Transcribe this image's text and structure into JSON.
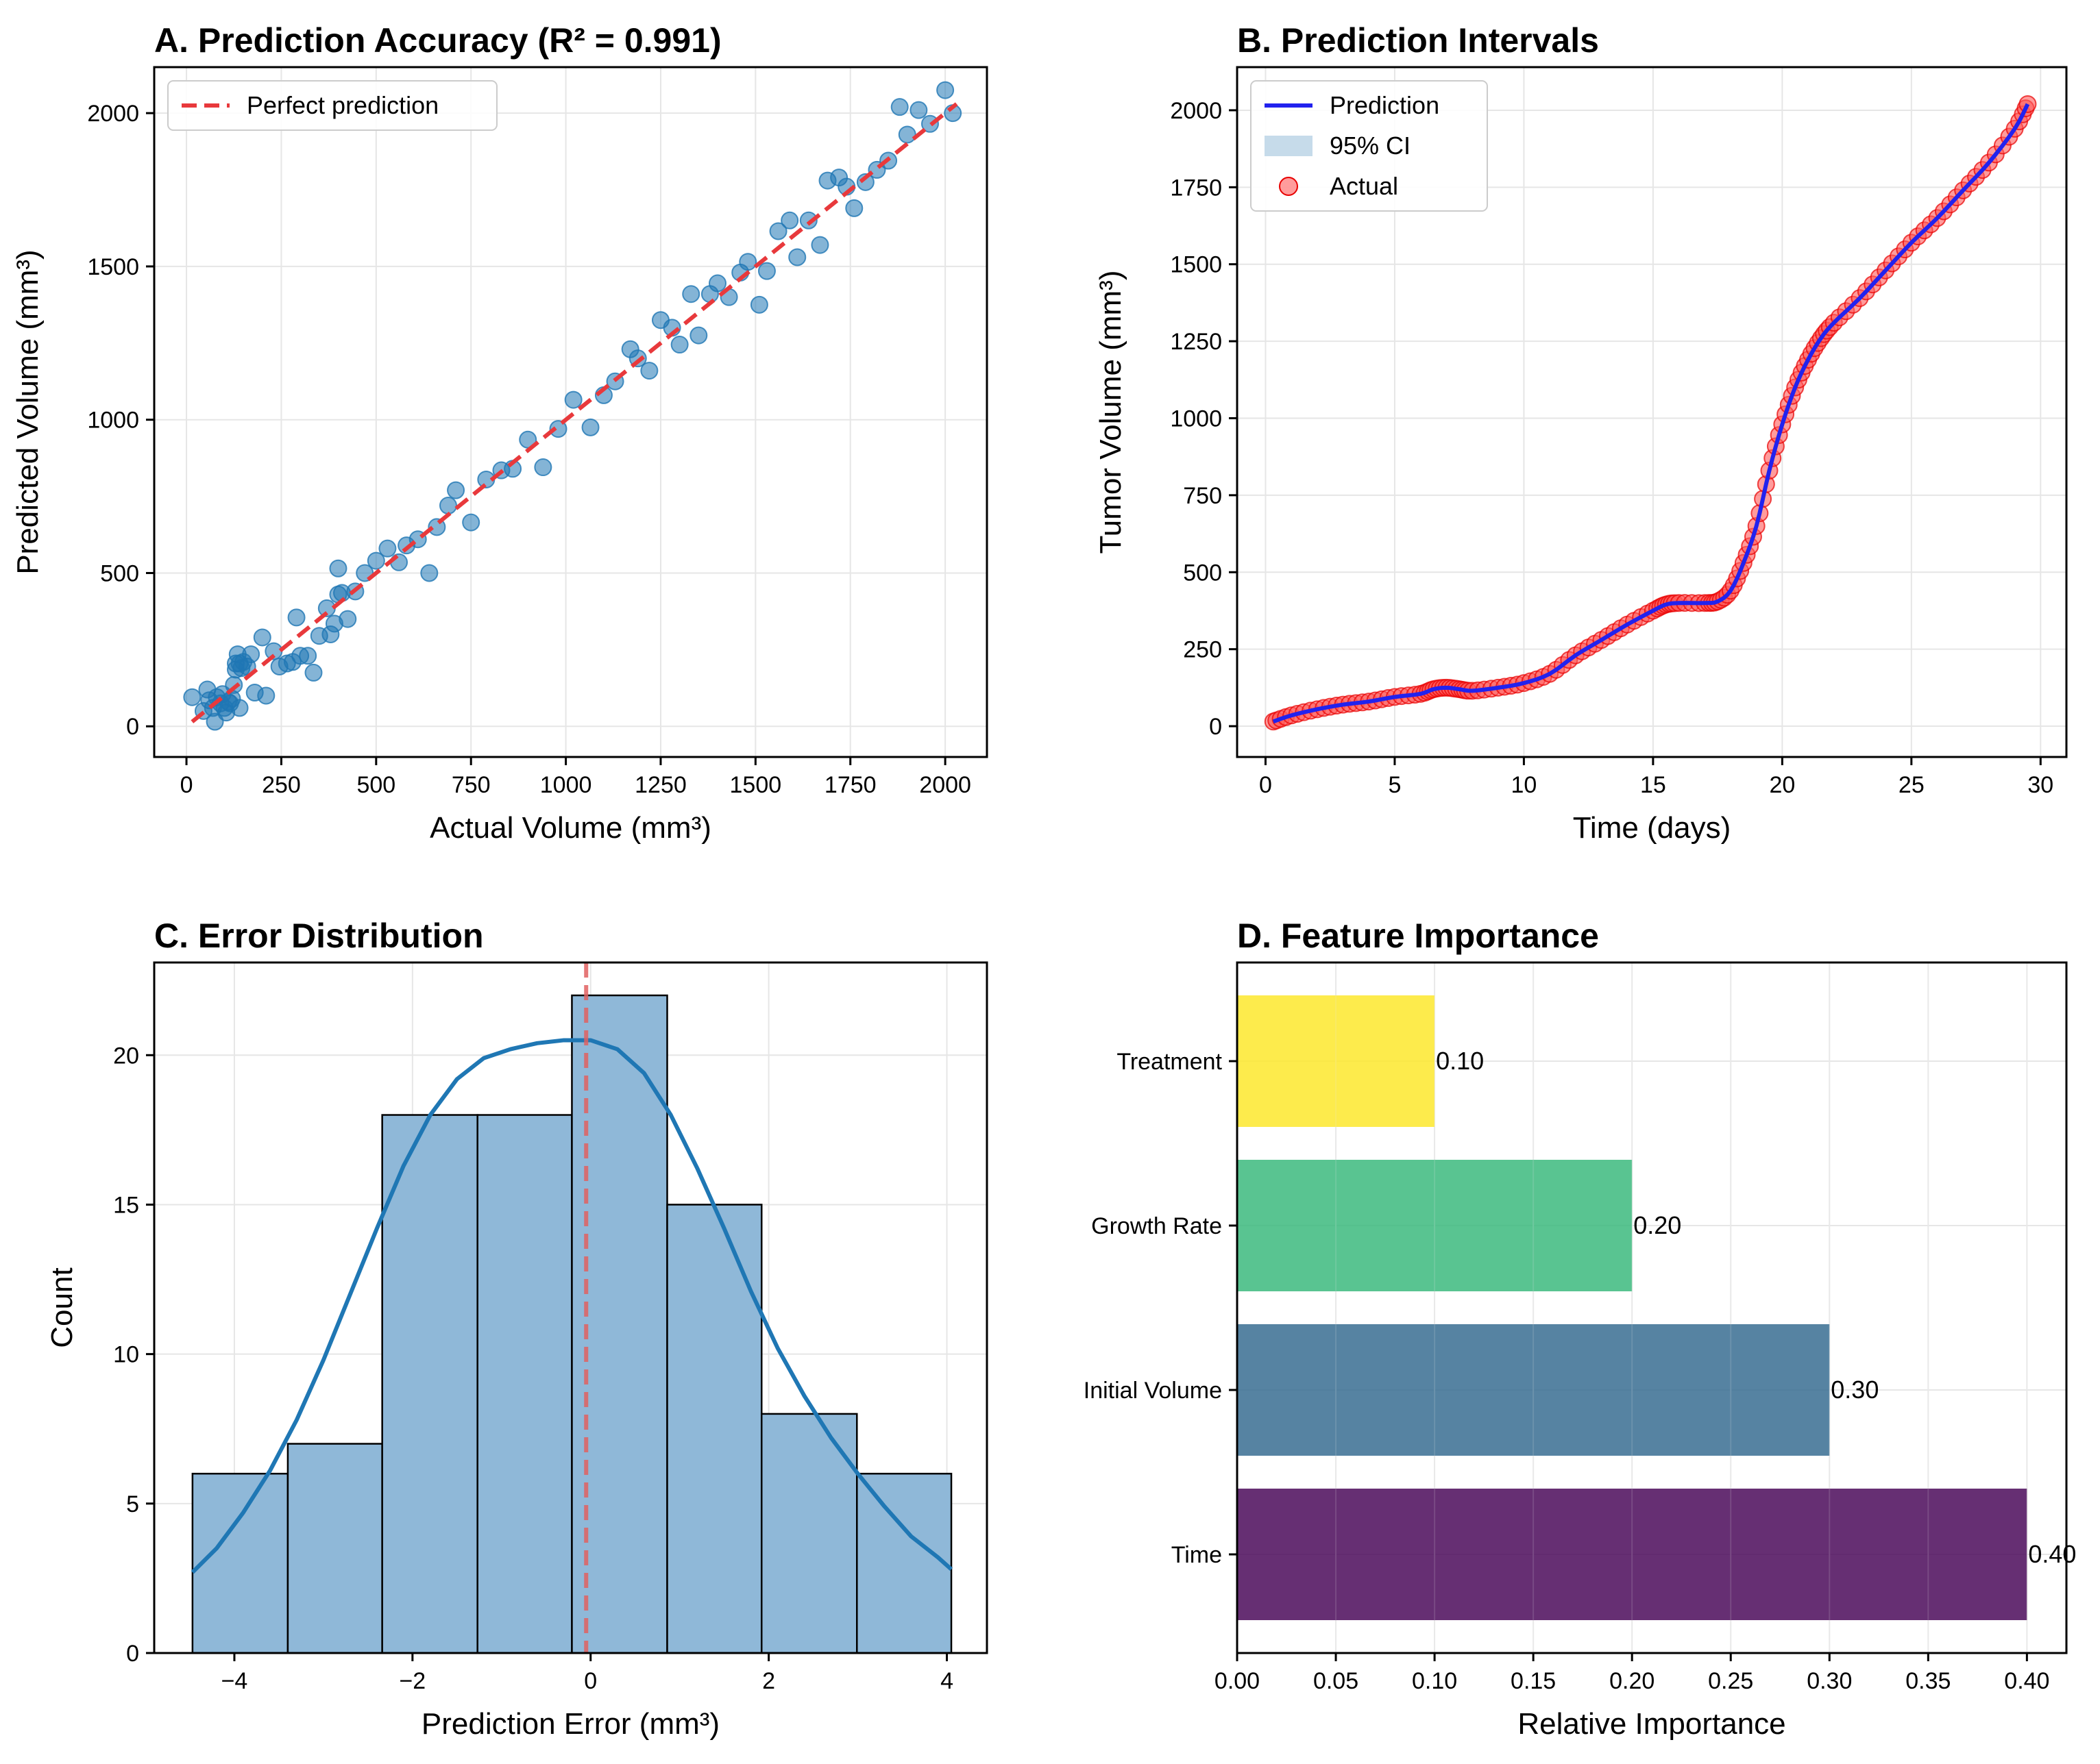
{
  "chart_data": [
    {
      "id": "A",
      "type": "scatter",
      "title": "A. Prediction Accuracy (R² = 0.991)",
      "xlabel": "Actual Volume (mm³)",
      "ylabel": "Predicted Volume (mm³)",
      "xlim": [
        -85,
        2110
      ],
      "ylim": [
        -100,
        2150
      ],
      "xticks": [
        0,
        250,
        500,
        750,
        1000,
        1250,
        1500,
        1750,
        2000
      ],
      "yticks": [
        0,
        500,
        1000,
        1500,
        2000
      ],
      "grid": true,
      "legend": {
        "placement": "top-left",
        "entries": [
          "Perfect prediction"
        ]
      },
      "colors": {
        "points": "#1f77b4",
        "reference_line": "#e8393c"
      },
      "reference_line": {
        "name": "Perfect prediction",
        "x": [
          15,
          2030
        ],
        "y": [
          15,
          2030
        ]
      },
      "points": [
        [
          15,
          95
        ],
        [
          45,
          50
        ],
        [
          55,
          120
        ],
        [
          60,
          85
        ],
        [
          70,
          60
        ],
        [
          75,
          15
        ],
        [
          80,
          95
        ],
        [
          90,
          75
        ],
        [
          95,
          105
        ],
        [
          100,
          60
        ],
        [
          105,
          45
        ],
        [
          110,
          80
        ],
        [
          115,
          75
        ],
        [
          120,
          90
        ],
        [
          125,
          135
        ],
        [
          130,
          185
        ],
        [
          130,
          205
        ],
        [
          135,
          235
        ],
        [
          140,
          60
        ],
        [
          140,
          205
        ],
        [
          145,
          190
        ],
        [
          150,
          210
        ],
        [
          160,
          195
        ],
        [
          170,
          235
        ],
        [
          180,
          110
        ],
        [
          200,
          290
        ],
        [
          210,
          100
        ],
        [
          230,
          245
        ],
        [
          245,
          195
        ],
        [
          265,
          205
        ],
        [
          280,
          210
        ],
        [
          290,
          355
        ],
        [
          300,
          230
        ],
        [
          320,
          230
        ],
        [
          335,
          175
        ],
        [
          350,
          295
        ],
        [
          370,
          385
        ],
        [
          380,
          300
        ],
        [
          390,
          335
        ],
        [
          400,
          515
        ],
        [
          400,
          430
        ],
        [
          410,
          435
        ],
        [
          425,
          350
        ],
        [
          445,
          440
        ],
        [
          470,
          500
        ],
        [
          500,
          540
        ],
        [
          530,
          580
        ],
        [
          560,
          535
        ],
        [
          580,
          590
        ],
        [
          610,
          610
        ],
        [
          640,
          500
        ],
        [
          660,
          650
        ],
        [
          690,
          720
        ],
        [
          710,
          770
        ],
        [
          750,
          665
        ],
        [
          790,
          805
        ],
        [
          830,
          835
        ],
        [
          860,
          840
        ],
        [
          900,
          935
        ],
        [
          940,
          845
        ],
        [
          980,
          970
        ],
        [
          1020,
          1065
        ],
        [
          1065,
          975
        ],
        [
          1100,
          1080
        ],
        [
          1130,
          1125
        ],
        [
          1170,
          1230
        ],
        [
          1190,
          1200
        ],
        [
          1220,
          1160
        ],
        [
          1250,
          1325
        ],
        [
          1280,
          1300
        ],
        [
          1300,
          1245
        ],
        [
          1330,
          1410
        ],
        [
          1350,
          1275
        ],
        [
          1380,
          1410
        ],
        [
          1400,
          1445
        ],
        [
          1430,
          1400
        ],
        [
          1460,
          1480
        ],
        [
          1480,
          1515
        ],
        [
          1510,
          1375
        ],
        [
          1530,
          1485
        ],
        [
          1560,
          1615
        ],
        [
          1590,
          1650
        ],
        [
          1610,
          1530
        ],
        [
          1640,
          1650
        ],
        [
          1670,
          1570
        ],
        [
          1690,
          1780
        ],
        [
          1720,
          1790
        ],
        [
          1740,
          1760
        ],
        [
          1760,
          1690
        ],
        [
          1790,
          1775
        ],
        [
          1820,
          1815
        ],
        [
          1850,
          1845
        ],
        [
          1880,
          2020
        ],
        [
          1900,
          1930
        ],
        [
          1930,
          2010
        ],
        [
          1960,
          1965
        ],
        [
          2000,
          2075
        ],
        [
          2020,
          2000
        ]
      ]
    },
    {
      "id": "B",
      "type": "line",
      "title": "B. Prediction Intervals",
      "xlabel": "Time (days)",
      "ylabel": "Tumor Volume (mm³)",
      "xlim": [
        -1.1,
        31.0
      ],
      "ylim": [
        -100,
        2140
      ],
      "xticks": [
        0,
        5,
        10,
        15,
        20,
        25,
        30
      ],
      "yticks": [
        0,
        250,
        500,
        750,
        1000,
        1250,
        1500,
        1750,
        2000
      ],
      "grid": true,
      "legend": {
        "placement": "top-left",
        "entries": [
          "Prediction",
          "95% CI",
          "Actual"
        ]
      },
      "colors": {
        "prediction": "#2222ee",
        "ci": "#c6dbea",
        "actual_fill": "#ff5a5a",
        "actual_edge": "#e80000"
      },
      "key_points": [
        [
          0.3,
          15
        ],
        [
          1,
          35
        ],
        [
          2,
          55
        ],
        [
          3,
          70
        ],
        [
          4,
          80
        ],
        [
          5,
          95
        ],
        [
          6,
          105
        ],
        [
          6.5,
          120
        ],
        [
          7,
          125
        ],
        [
          7.5,
          120
        ],
        [
          8,
          115
        ],
        [
          9,
          125
        ],
        [
          10,
          140
        ],
        [
          11,
          170
        ],
        [
          12,
          230
        ],
        [
          13,
          280
        ],
        [
          14,
          330
        ],
        [
          15,
          375
        ],
        [
          15.5,
          395
        ],
        [
          16,
          400
        ],
        [
          17,
          400
        ],
        [
          17.5,
          405
        ],
        [
          18,
          440
        ],
        [
          18.5,
          530
        ],
        [
          19,
          650
        ],
        [
          19.5,
          830
        ],
        [
          20,
          980
        ],
        [
          20.5,
          1100
        ],
        [
          21,
          1190
        ],
        [
          21.5,
          1260
        ],
        [
          22,
          1310
        ],
        [
          23,
          1390
        ],
        [
          24,
          1480
        ],
        [
          25,
          1570
        ],
        [
          26,
          1650
        ],
        [
          27,
          1740
        ],
        [
          28,
          1830
        ],
        [
          29,
          1940
        ],
        [
          29.5,
          2020
        ]
      ]
    },
    {
      "id": "C",
      "type": "bar",
      "title": "C. Error Distribution",
      "xlabel": "Prediction Error (mm³)",
      "ylabel": "Count",
      "xlim": [
        -4.9,
        4.45
      ],
      "ylim": [
        0,
        23.1
      ],
      "xticks": [
        -4,
        -2,
        0,
        2,
        4
      ],
      "yticks": [
        0,
        5,
        10,
        15,
        20
      ],
      "grid": true,
      "colors": {
        "bars": "#8fb8d8",
        "kde": "#1f77b4",
        "mean_line": "#e06060"
      },
      "bin_edges": [
        -4.47,
        -3.4,
        -2.34,
        -1.27,
        -0.21,
        0.86,
        1.92,
        2.99,
        4.05
      ],
      "counts": [
        6,
        7,
        18,
        18,
        22,
        15,
        8,
        6
      ],
      "mean_line_x": -0.05,
      "kde": [
        [
          -4.47,
          2.7
        ],
        [
          -4.2,
          3.5
        ],
        [
          -3.9,
          4.7
        ],
        [
          -3.6,
          6.1
        ],
        [
          -3.3,
          7.8
        ],
        [
          -3.0,
          9.8
        ],
        [
          -2.7,
          12.0
        ],
        [
          -2.4,
          14.2
        ],
        [
          -2.1,
          16.3
        ],
        [
          -1.8,
          18.0
        ],
        [
          -1.5,
          19.2
        ],
        [
          -1.2,
          19.9
        ],
        [
          -0.9,
          20.2
        ],
        [
          -0.6,
          20.4
        ],
        [
          -0.3,
          20.5
        ],
        [
          0.0,
          20.5
        ],
        [
          0.3,
          20.2
        ],
        [
          0.6,
          19.4
        ],
        [
          0.9,
          18.0
        ],
        [
          1.2,
          16.2
        ],
        [
          1.5,
          14.2
        ],
        [
          1.8,
          12.1
        ],
        [
          2.1,
          10.2
        ],
        [
          2.4,
          8.6
        ],
        [
          2.7,
          7.2
        ],
        [
          3.0,
          6.0
        ],
        [
          3.3,
          4.9
        ],
        [
          3.6,
          3.9
        ],
        [
          3.9,
          3.2
        ],
        [
          4.05,
          2.8
        ]
      ]
    },
    {
      "id": "D",
      "type": "bar",
      "orientation": "horizontal",
      "title": "D. Feature Importance",
      "xlabel": "Relative Importance",
      "ylabel": "",
      "xlim": [
        0,
        0.42
      ],
      "xticks": [
        "0.00",
        "0.05",
        "0.10",
        "0.15",
        "0.20",
        "0.25",
        "0.30",
        "0.35",
        "0.40"
      ],
      "grid": true,
      "categories": [
        "Time",
        "Initial Volume",
        "Growth Rate",
        "Treatment"
      ],
      "values": [
        0.4,
        0.3,
        0.2,
        0.1
      ],
      "value_labels": [
        "0.40",
        "0.30",
        "0.20",
        "0.10"
      ],
      "colors": [
        "#440154",
        "#31688e",
        "#35b779",
        "#fde725"
      ]
    }
  ]
}
